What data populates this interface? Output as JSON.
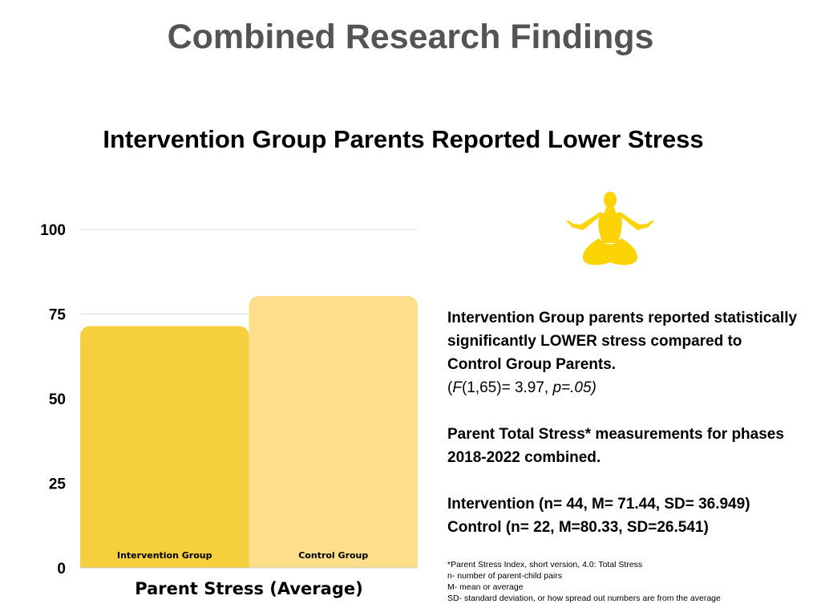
{
  "header": {
    "title": "Combined Research Findings",
    "subtitle": "Intervention Group Parents Reported Lower Stress"
  },
  "chart_data": {
    "type": "bar",
    "categories": [
      "Intervention Group",
      "Control Group"
    ],
    "values": [
      71.44,
      80.33
    ],
    "colors": [
      "#f6cf3f",
      "#fddf8b"
    ],
    "xlabel": "Parent Stress (Average)",
    "ylabel": "",
    "ylim": [
      0,
      100
    ],
    "yticks": [
      0,
      25,
      50,
      75,
      100
    ],
    "grid": true,
    "legend": "none"
  },
  "icon": {
    "name": "meditation-icon",
    "color": "#fcd304"
  },
  "findings": {
    "headline": "Intervention Group parents reported statistically significantly LOWER stress compared to Control Group Parents.",
    "stat_F": "F",
    "stat_df": "(1,65)= 3.97, ",
    "stat_p": "p=.05)",
    "stat_open": "(",
    "measure_note": "Parent Total Stress* measurements for phases 2018-2022 combined.",
    "intervention_line": "Intervention (n= 44, M= 71.44, SD= 36.949)",
    "control_line": "Control (n= 22, M=80.33, SD=26.541)"
  },
  "notes": {
    "psi": "*Parent Stress Index, short version, 4.0: Total Stress",
    "n": "n- number of parent-child pairs",
    "m": "M- mean or average",
    "sd": "SD- standard deviation, or how spread out numbers are from the average"
  }
}
